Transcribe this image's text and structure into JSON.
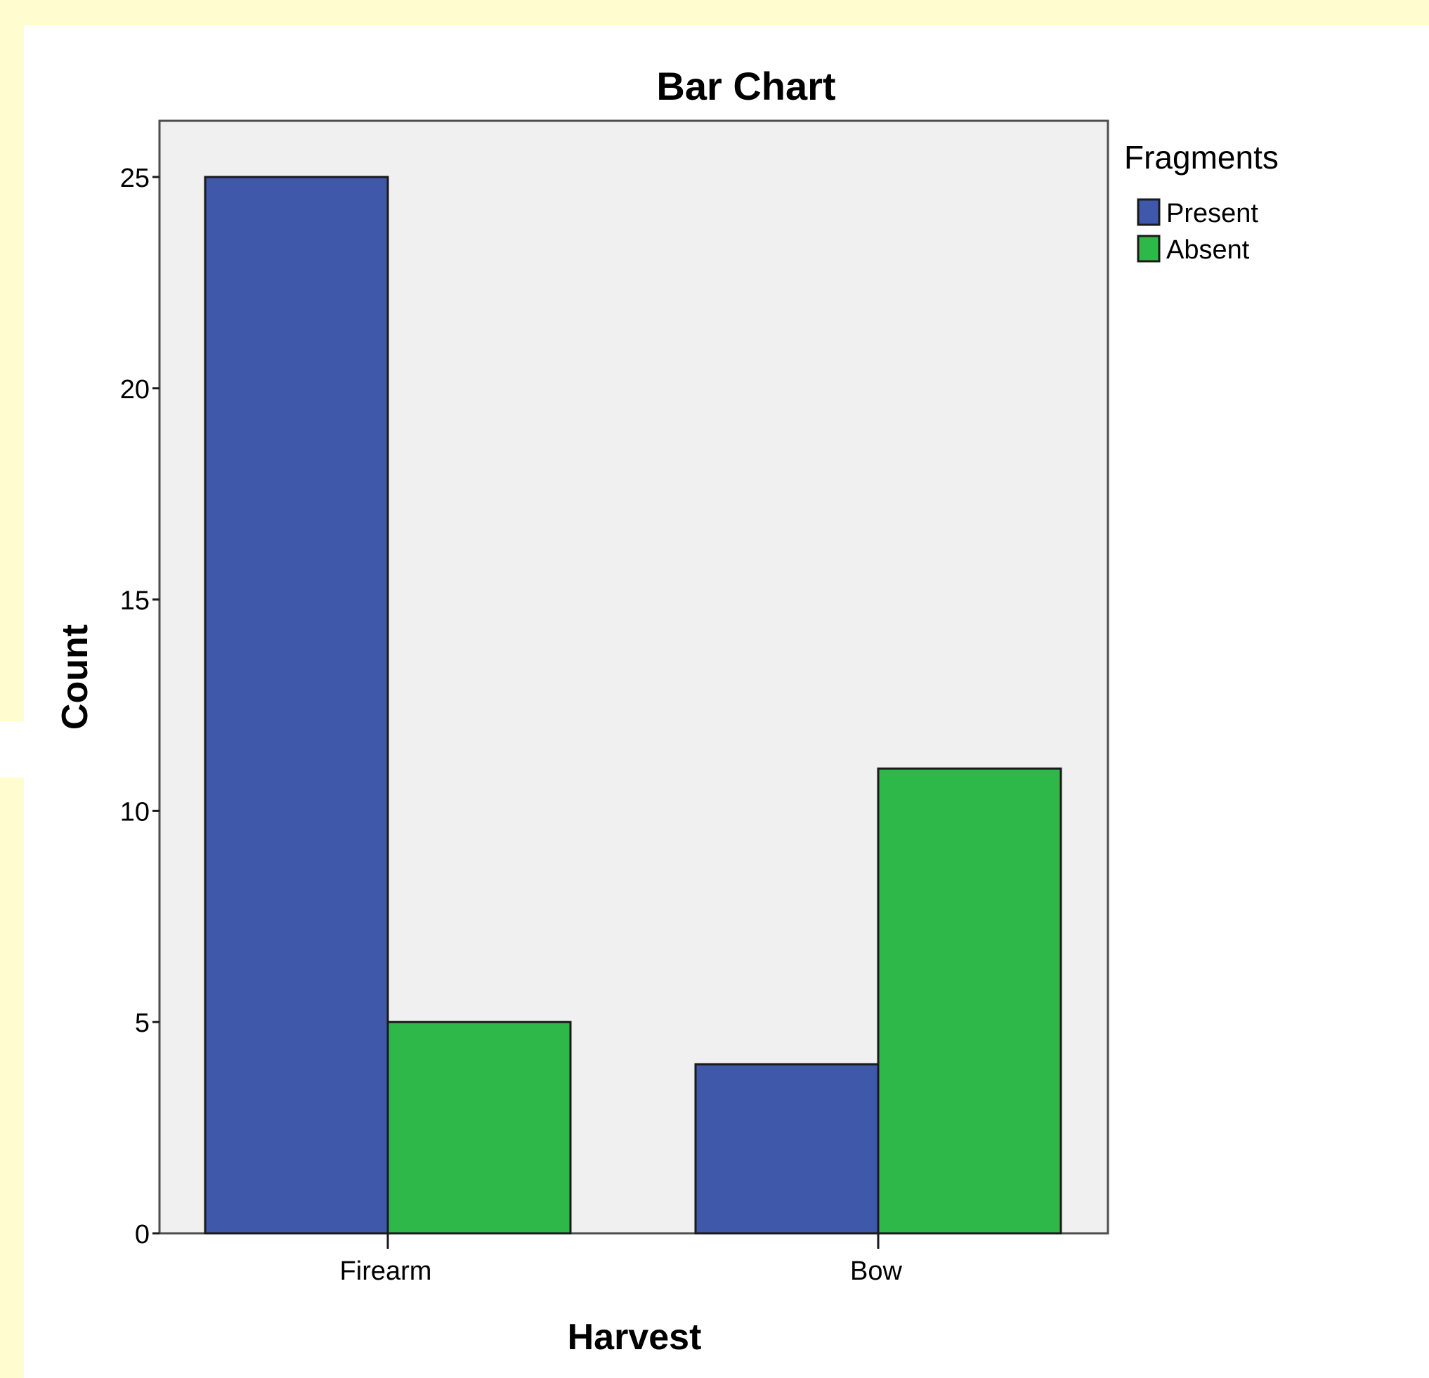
{
  "chart_data": {
    "type": "bar",
    "title": "Bar Chart",
    "xlabel": "Harvest",
    "ylabel": "Count",
    "categories": [
      "Firearm",
      "Bow"
    ],
    "series": [
      {
        "name": "Present",
        "values": [
          25,
          4
        ],
        "color": "#3f58aa"
      },
      {
        "name": "Absent",
        "values": [
          5,
          11
        ],
        "color": "#2fb84a"
      }
    ],
    "yticks": [
      0,
      5,
      10,
      15,
      20,
      25
    ],
    "ylim": [
      0,
      26.3
    ],
    "legend_title": "Fragments",
    "legend_position": "right",
    "plot_background": "#f0f0f0",
    "page_background": "#fffdd0",
    "grid": false
  }
}
